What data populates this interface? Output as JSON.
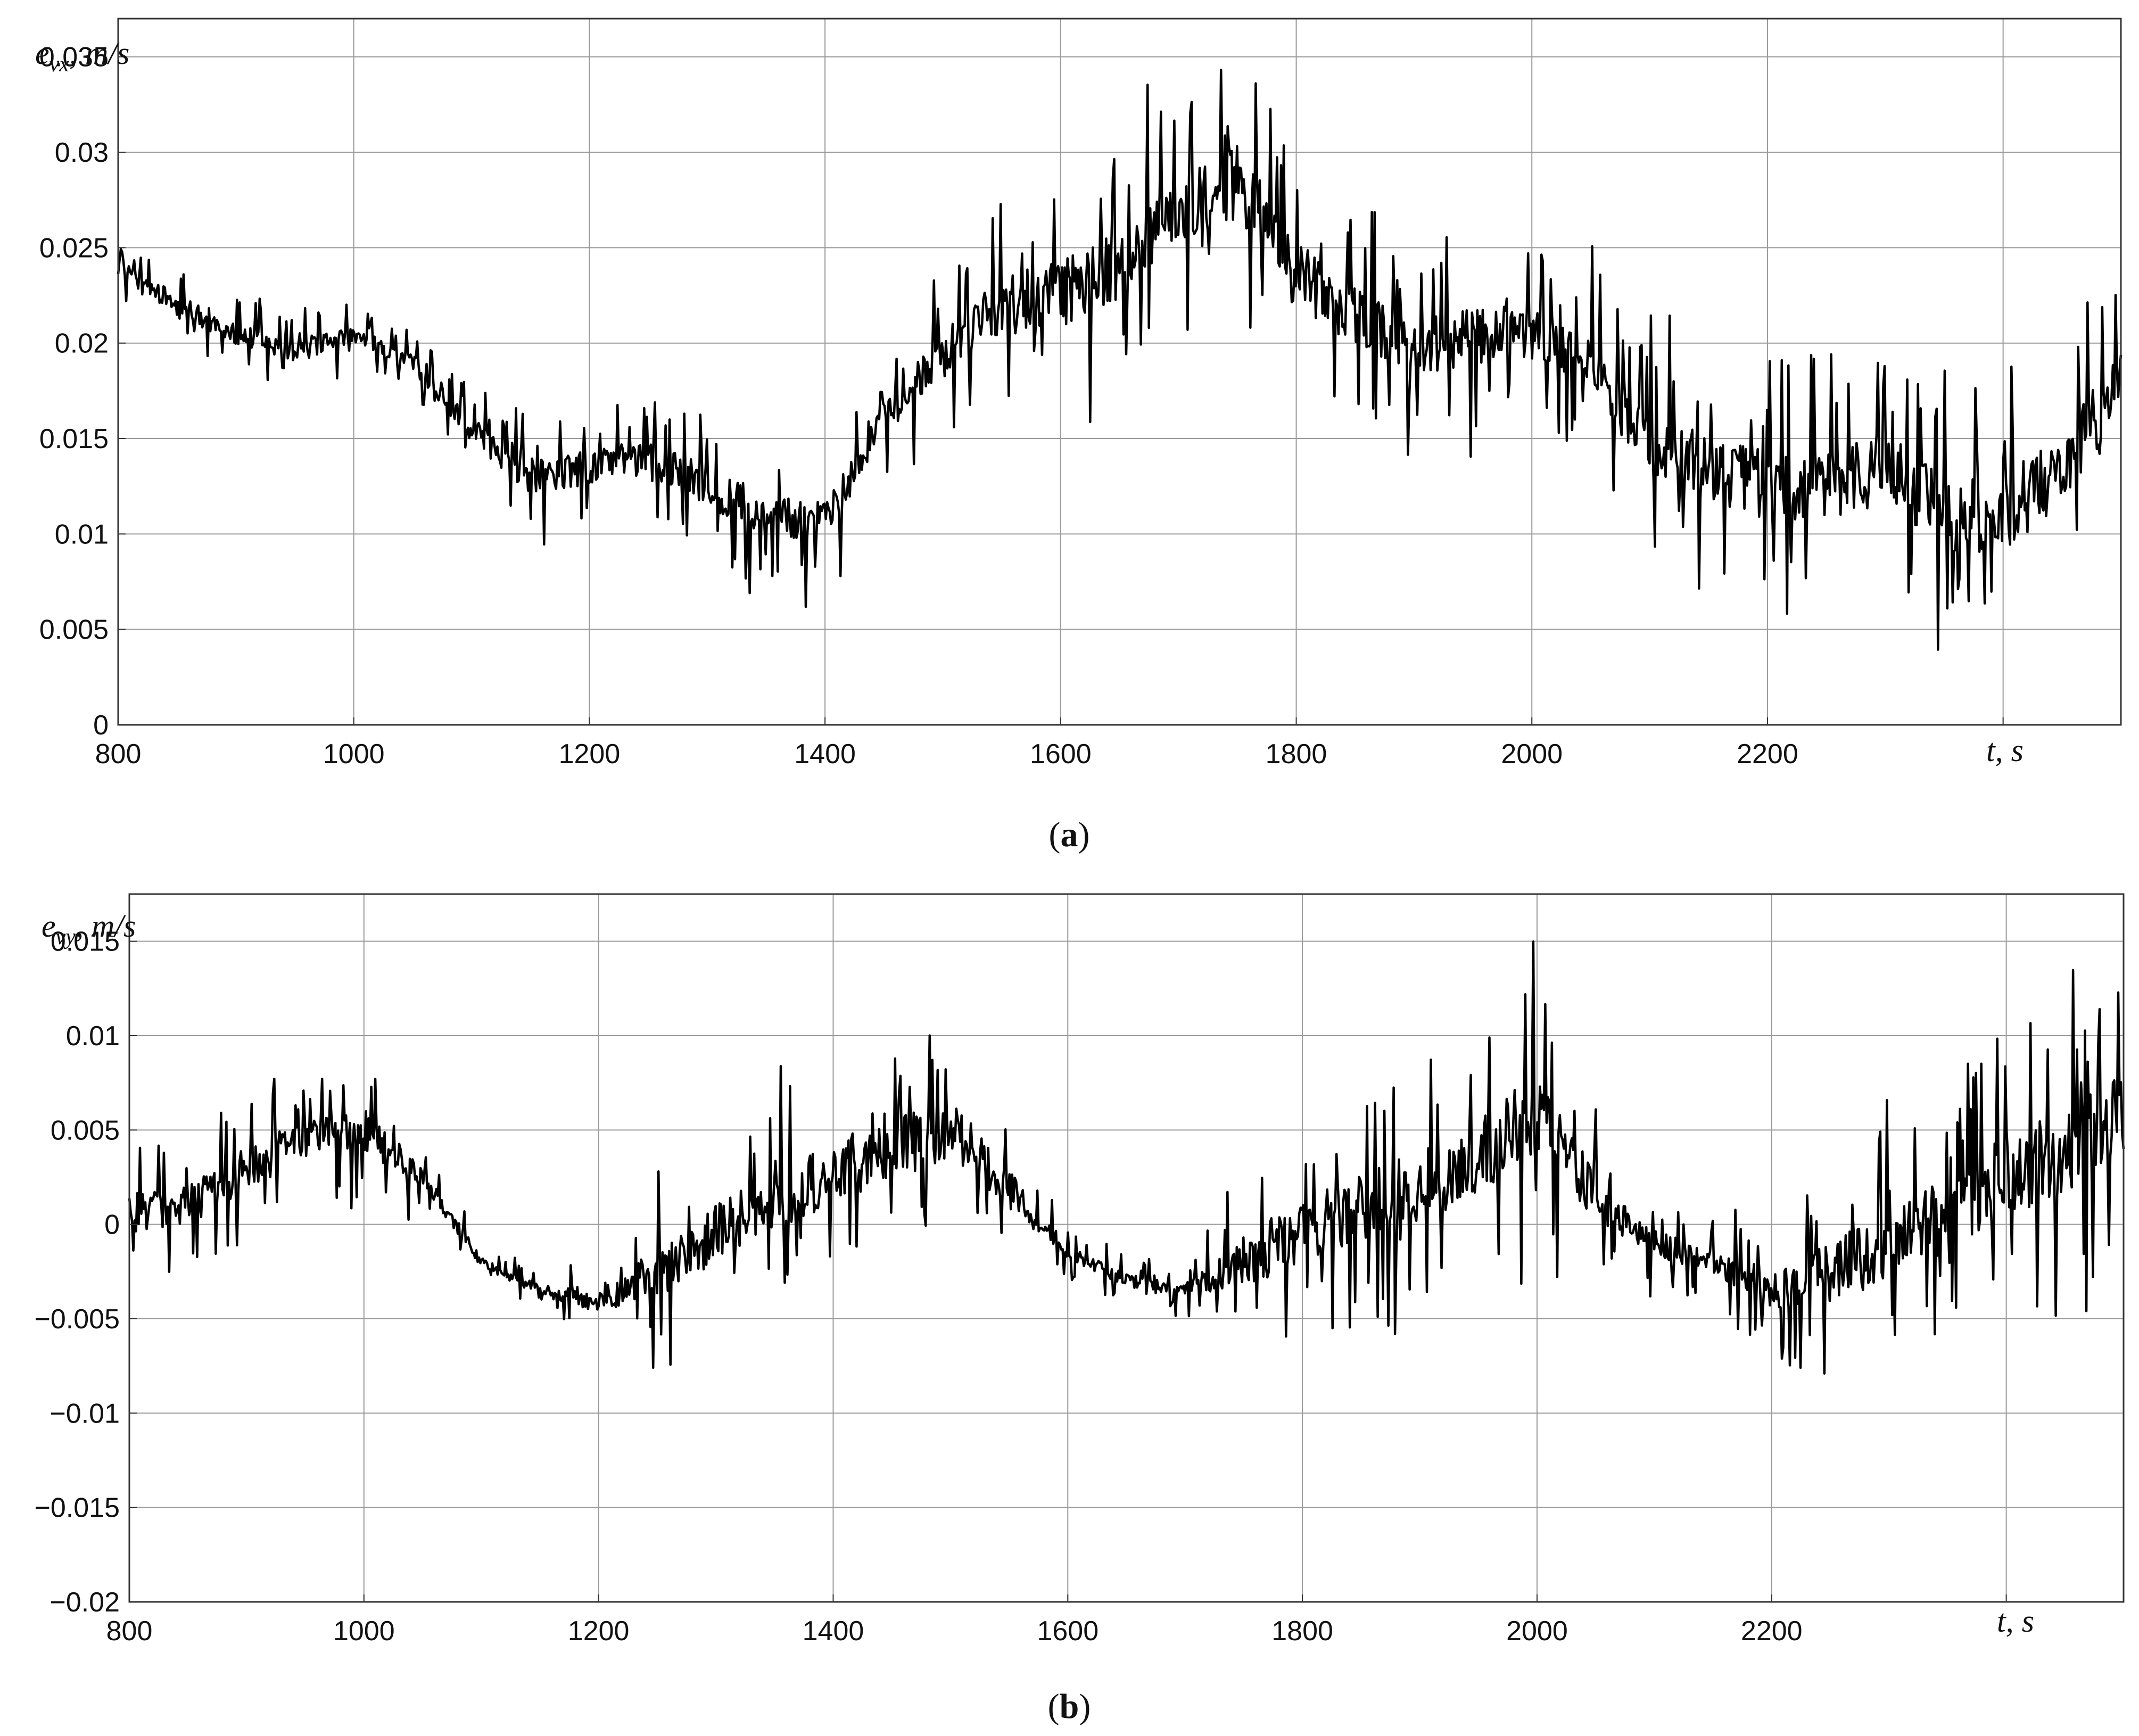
{
  "colors": {
    "line": "#000000",
    "grid": "#9a9a9a",
    "axes": "#333333",
    "background": "#ffffff"
  },
  "chart_data": [
    {
      "type": "line",
      "panel": "a",
      "caption": "(a)",
      "caption_open": "(",
      "caption_letter": "a",
      "caption_close": ")",
      "ylabel": "e",
      "ylabel_sub": "vx",
      "ylabel_unit": ", m/s",
      "xlabel": "t, s",
      "xlim": [
        800,
        2500
      ],
      "ylim": [
        0,
        0.037
      ],
      "grid": true,
      "x_ticks": [
        800,
        1000,
        1200,
        1400,
        1600,
        1800,
        2000,
        2200,
        2400
      ],
      "x_tick_labels": [
        "800",
        "1000",
        "1200",
        "1400",
        "1600",
        "1800",
        "2000",
        "2200",
        ""
      ],
      "y_ticks": [
        0,
        0.005,
        0.01,
        0.015,
        0.02,
        0.025,
        0.03,
        0.035
      ],
      "y_tick_labels": [
        "0",
        "0.005",
        "0.01",
        "0.015",
        "0.02",
        "0.025",
        "0.03",
        "0.035"
      ],
      "series": [
        {
          "x": [
            800,
            850,
            900,
            950,
            1000,
            1050,
            1100,
            1150,
            1200,
            1250,
            1300,
            1350,
            1400,
            1450,
            1500,
            1550,
            1600,
            1650,
            1700,
            1750,
            1800,
            1850,
            1900,
            1950,
            2000,
            2050,
            2100,
            2150,
            2200,
            2250,
            2300,
            2350,
            2400,
            2450,
            2500
          ],
          "y": [
            0.024,
            0.022,
            0.0205,
            0.0195,
            0.0205,
            0.019,
            0.0155,
            0.013,
            0.0135,
            0.014,
            0.0125,
            0.011,
            0.0105,
            0.016,
            0.0195,
            0.022,
            0.0225,
            0.024,
            0.027,
            0.0285,
            0.0235,
            0.0215,
            0.0195,
            0.0205,
            0.0205,
            0.019,
            0.0145,
            0.0135,
            0.0125,
            0.0125,
            0.0135,
            0.011,
            0.011,
            0.0135,
            0.0185
          ],
          "noise_amplitude": [
            0.001,
            0.0012,
            0.0012,
            0.0012,
            0.001,
            0.001,
            0.0015,
            0.002,
            0.002,
            0.0022,
            0.0025,
            0.0025,
            0.0025,
            0.002,
            0.0025,
            0.0035,
            0.004,
            0.0042,
            0.0045,
            0.0045,
            0.004,
            0.0035,
            0.0035,
            0.0035,
            0.003,
            0.0032,
            0.0038,
            0.004,
            0.0042,
            0.0042,
            0.0042,
            0.0042,
            0.0045,
            0.0045,
            0.0045
          ]
        }
      ]
    },
    {
      "type": "line",
      "panel": "b",
      "caption": "(b)",
      "caption_open": "(",
      "caption_letter": "b",
      "caption_close": ")",
      "ylabel": "e",
      "ylabel_sub": "vy",
      "ylabel_unit": ", m/s",
      "xlabel": "t, s",
      "xlim": [
        800,
        2500
      ],
      "ylim": [
        -0.02,
        0.0175
      ],
      "grid": true,
      "x_ticks": [
        800,
        1000,
        1200,
        1400,
        1600,
        1800,
        2000,
        2200,
        2400
      ],
      "x_tick_labels": [
        "800",
        "1000",
        "1200",
        "1400",
        "1600",
        "1800",
        "2000",
        "2200",
        ""
      ],
      "y_ticks": [
        -0.02,
        -0.015,
        -0.01,
        -0.005,
        0,
        0.005,
        0.01,
        0.015
      ],
      "y_tick_labels": [
        "−0.02",
        "−0.015",
        "−0.01",
        "−0.005",
        "0",
        "0.005",
        "0.01",
        "0.015"
      ],
      "series": [
        {
          "x": [
            800,
            850,
            900,
            950,
            1000,
            1050,
            1100,
            1150,
            1200,
            1250,
            1300,
            1350,
            1400,
            1450,
            1500,
            1550,
            1600,
            1650,
            1700,
            1750,
            1800,
            1850,
            1900,
            1950,
            2000,
            2050,
            2100,
            2150,
            2200,
            2250,
            2300,
            2350,
            2400,
            2450,
            2500
          ],
          "y": [
            0.0005,
            0.001,
            0.003,
            0.0045,
            0.005,
            0.0025,
            -0.002,
            -0.0035,
            -0.004,
            -0.0025,
            -0.0005,
            0.0015,
            0.0025,
            0.004,
            0.005,
            0.002,
            -0.0015,
            -0.003,
            -0.0035,
            -0.002,
            -0.0005,
            0.001,
            0.002,
            0.0035,
            0.006,
            0.0015,
            -0.001,
            -0.002,
            -0.0035,
            -0.0025,
            -0.001,
            0.0005,
            0.002,
            0.004,
            0.006
          ],
          "noise_amplitude": [
            0.0025,
            0.0025,
            0.0025,
            0.0025,
            0.0025,
            0.0012,
            0.0006,
            0.0006,
            0.0015,
            0.003,
            0.0035,
            0.0035,
            0.0035,
            0.0035,
            0.0035,
            0.0025,
            0.0008,
            0.0008,
            0.0008,
            0.003,
            0.0035,
            0.004,
            0.004,
            0.0045,
            0.005,
            0.003,
            0.0015,
            0.0015,
            0.0025,
            0.0035,
            0.004,
            0.0045,
            0.005,
            0.0055,
            0.0055
          ]
        }
      ]
    }
  ]
}
